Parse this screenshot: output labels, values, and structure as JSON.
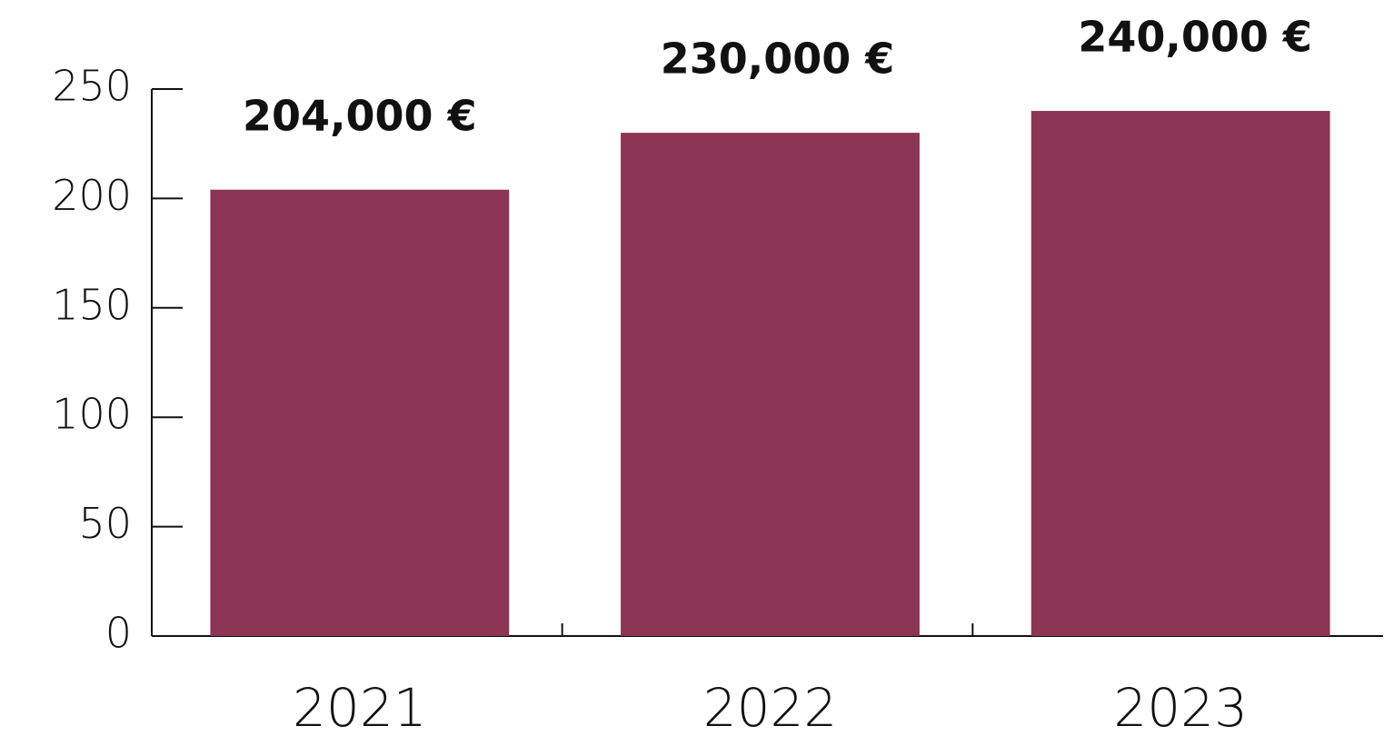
{
  "chart_data": {
    "type": "bar",
    "categories": [
      "2021",
      "2022",
      "2023"
    ],
    "values": [
      204,
      230,
      240
    ],
    "value_labels": [
      "204,000 €",
      "230,000 €",
      "240,000 €"
    ],
    "color": "#8b3453",
    "ylim": [
      0,
      250
    ],
    "yticks": [
      0,
      50,
      100,
      150,
      200,
      250
    ],
    "grid": false
  }
}
